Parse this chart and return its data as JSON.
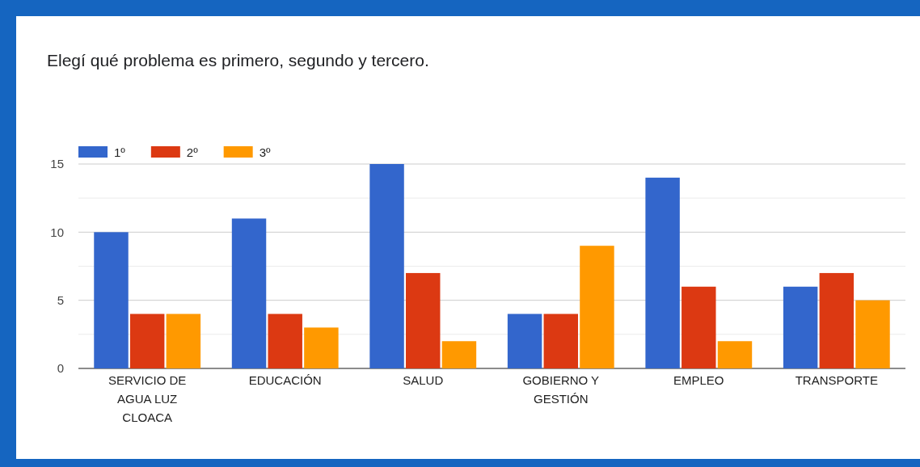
{
  "chart_data": {
    "type": "bar",
    "title": "Elegí qué problema es primero, segundo y tercero.",
    "categories": [
      "SERVICIO DE AGUA LUZ CLOACA",
      "EDUCACIÓN",
      "SALUD",
      "GOBIERNO Y GESTIÓN",
      "EMPLEO",
      "TRANSPORTE"
    ],
    "series": [
      {
        "name": "1º",
        "color": "#3366cc",
        "values": [
          10,
          11,
          15,
          4,
          14,
          6
        ]
      },
      {
        "name": "2º",
        "color": "#dc3912",
        "values": [
          4,
          4,
          7,
          4,
          6,
          7
        ]
      },
      {
        "name": "3º",
        "color": "#ff9900",
        "values": [
          4,
          3,
          2,
          9,
          2,
          5
        ]
      }
    ],
    "ylim": [
      0,
      15
    ],
    "yticks": [
      0,
      {
        "value": 2.5,
        "label": null
      },
      5,
      {
        "value": 7.5,
        "label": null
      },
      10,
      {
        "value": 12.5,
        "label": null
      },
      15
    ],
    "grid": true,
    "legend": "top left"
  }
}
